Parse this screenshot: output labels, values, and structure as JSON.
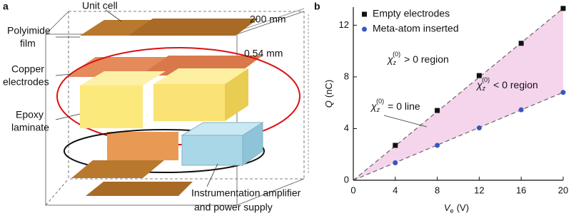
{
  "panel_a": {
    "label": "a",
    "unit_cell": "Unit cell",
    "polyimide": [
      "Polyimide",
      "film"
    ],
    "width": "200 mm",
    "thickness": "0.54 mm",
    "copper": [
      "Copper",
      "electrodes"
    ],
    "epoxy": [
      "Epoxy",
      "laminate"
    ],
    "amplifier": [
      "Instrumentation amplifier",
      "and power supply"
    ]
  },
  "chart_data": {
    "type": "scatter",
    "panel_label": "b",
    "x_label": {
      "symbol": "V",
      "sub": "e",
      "unit": "(V)"
    },
    "y_label": {
      "symbol": "Q",
      "unit": "(nC)"
    },
    "xlim": [
      0,
      20
    ],
    "xticks": [
      0,
      4,
      8,
      12,
      16,
      20
    ],
    "ylim": [
      0,
      13.4
    ],
    "yticks": [
      0,
      4,
      8,
      12
    ],
    "series": [
      {
        "name": "Empty electrodes",
        "color": "#111111",
        "marker": "square",
        "x": [
          4,
          8,
          12,
          16,
          20
        ],
        "values": [
          2.7,
          5.4,
          8.1,
          10.6,
          13.3
        ]
      },
      {
        "name": "Meta-atom inserted",
        "color": "#3a56c5",
        "marker": "circle",
        "x": [
          4,
          8,
          12,
          16,
          20
        ],
        "values": [
          1.35,
          2.7,
          4.05,
          5.45,
          6.8
        ]
      }
    ],
    "region_color": "#f5d5ec",
    "annotations": [
      {
        "symbol": "χ",
        "sub": "z",
        "sup": "(0)",
        "text": "> 0  region"
      },
      {
        "symbol": "χ",
        "sub": "z",
        "sup": "(0)",
        "text": "< 0  region"
      },
      {
        "symbol": "χ",
        "sub": "z",
        "sup": "(0)",
        "text": "= 0  line"
      }
    ]
  }
}
